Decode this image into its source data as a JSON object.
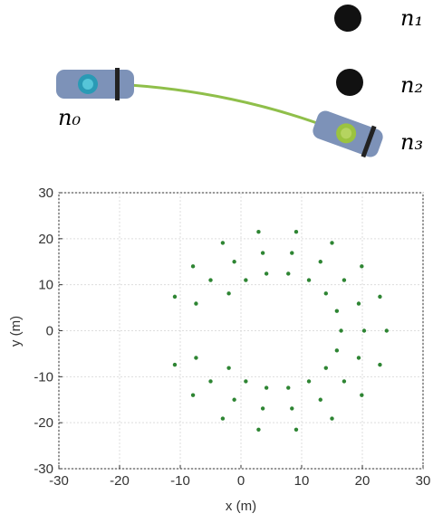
{
  "diagram": {
    "labels": [
      "n₁",
      "n₂",
      "n₀",
      "n₃"
    ]
  },
  "chart_data": {
    "type": "scatter",
    "xlabel": "x (m)",
    "ylabel": "y (m)",
    "color": "#2e8533",
    "grid": true,
    "xlim": [
      -30,
      30
    ],
    "ylim": [
      -30,
      30
    ],
    "xticks": [
      -30,
      -20,
      -10,
      0,
      10,
      20,
      30
    ],
    "yticks": [
      -30,
      -20,
      -10,
      0,
      10,
      20,
      30
    ],
    "x": [
      24,
      22.9,
      19.9,
      15,
      9.1,
      2.9,
      -3,
      -7.9,
      -10.9,
      -10.9,
      -7.9,
      -3,
      2.9,
      9.1,
      15,
      19.9,
      22.9,
      20.3,
      19.4,
      17,
      13.1,
      8.4,
      3.6,
      -1.1,
      -5,
      -7.4,
      -7.4,
      -5,
      -1.1,
      3.6,
      8.4,
      13.1,
      17,
      19.4,
      16.5,
      15.8,
      14,
      11.2,
      7.8,
      4.2,
      0.8,
      -2,
      -2,
      0.8,
      4.2,
      7.8,
      11.2,
      14,
      15.8
    ],
    "y": [
      0,
      7.4,
      14,
      19.1,
      21.5,
      21.5,
      19.1,
      14,
      7.4,
      -7.4,
      -14,
      -19.1,
      -21.5,
      -21.5,
      -19.1,
      -14,
      -7.4,
      0,
      5.9,
      11,
      15,
      16.9,
      16.9,
      15,
      11,
      5.9,
      -5.9,
      -11,
      -15,
      -16.9,
      -16.9,
      -15,
      -11,
      -5.9,
      0,
      4.3,
      8.1,
      11,
      12.4,
      12.4,
      11,
      8.1,
      -8.1,
      -11,
      -12.4,
      -12.4,
      -11,
      -8.1,
      -4.3
    ]
  }
}
